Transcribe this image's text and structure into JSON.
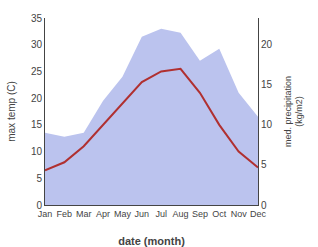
{
  "chart_data": {
    "type": "line",
    "categories": [
      "Jan",
      "Feb",
      "Mar",
      "Apr",
      "May",
      "Jun",
      "Jul",
      "Aug",
      "Sep",
      "Oct",
      "Nov",
      "Dec"
    ],
    "xlabel": "date (month)",
    "ylabel": "max temp (C)",
    "y2label": "med. precipitation\n(kg/m2)",
    "ylim": [
      0,
      35
    ],
    "yticks": [
      0,
      5,
      10,
      15,
      20,
      25,
      30,
      35
    ],
    "y2lim": [
      0,
      23.33
    ],
    "y2ticks": [
      0,
      5,
      10,
      15,
      20
    ],
    "grid": false,
    "series": [
      {
        "type": "area",
        "axis": "y2",
        "color": "#bbc3ee",
        "values": [
          9,
          8.5,
          9,
          13,
          16,
          21,
          22,
          21.5,
          18,
          19.5,
          14,
          11
        ]
      },
      {
        "type": "line",
        "color": "#b03030",
        "values": [
          6.5,
          8,
          11,
          15,
          19,
          23,
          25,
          25.5,
          21,
          15,
          10,
          7
        ]
      }
    ]
  }
}
